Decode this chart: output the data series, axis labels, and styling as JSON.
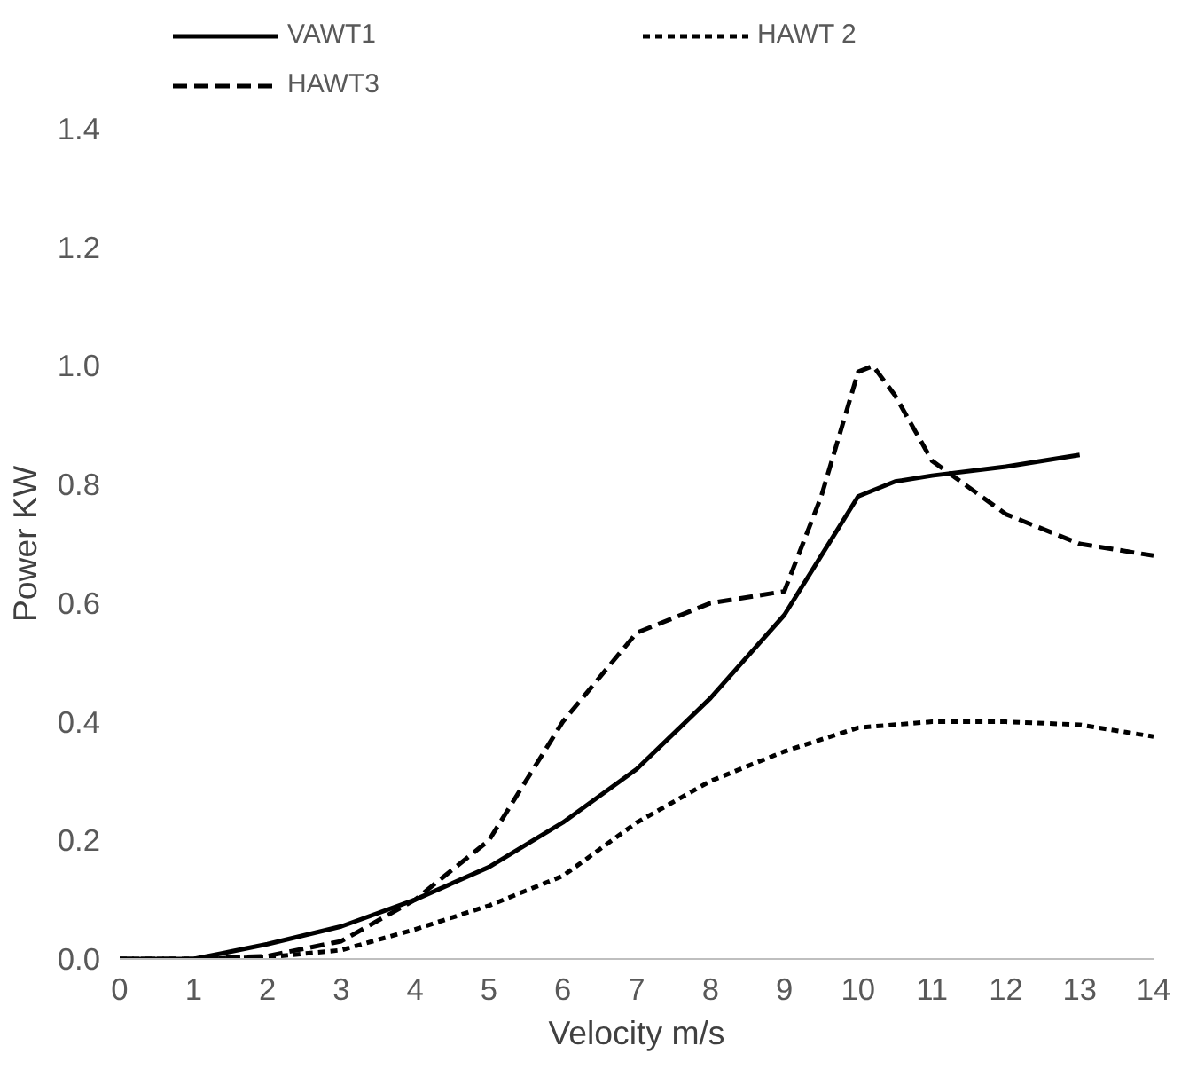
{
  "chart_data": {
    "type": "line",
    "xlabel": "Velocity m/s",
    "ylabel": "Power KW",
    "xlim": [
      0,
      14
    ],
    "ylim": [
      0,
      1.4
    ],
    "xticks": [
      0,
      1,
      2,
      3,
      4,
      5,
      6,
      7,
      8,
      9,
      10,
      11,
      12,
      13,
      14
    ],
    "yticks": [
      {
        "value": 0,
        "label": "0.0"
      },
      {
        "value": 0.2,
        "label": "0.2"
      },
      {
        "value": 0.4,
        "label": "0.4"
      },
      {
        "value": 0.6,
        "label": "0.6"
      },
      {
        "value": 0.8,
        "label": "0.8"
      },
      {
        "value": 1.0,
        "label": "1.0"
      },
      {
        "value": 1.2,
        "label": "1.2"
      },
      {
        "value": 1.4,
        "label": "1.4"
      }
    ],
    "grid": false,
    "legend": "top",
    "marker": "none",
    "series": [
      {
        "name": "VAWT1",
        "color": "#000000",
        "line_style": "solid",
        "x": [
          0,
          1,
          2,
          3,
          4,
          5,
          6,
          7,
          8,
          9,
          9.5,
          10,
          10.5,
          11,
          12,
          13
        ],
        "values": [
          0,
          0,
          0.025,
          0.055,
          0.1,
          0.155,
          0.23,
          0.32,
          0.44,
          0.58,
          0.68,
          0.78,
          0.805,
          0.815,
          0.83,
          0.85
        ]
      },
      {
        "name": "HAWT 2",
        "color": "#000000",
        "line_style": "dotted",
        "x": [
          0,
          1,
          2,
          3,
          4,
          5,
          6,
          7,
          8,
          9,
          10,
          11,
          12,
          13,
          14
        ],
        "values": [
          0,
          0,
          0.003,
          0.015,
          0.05,
          0.09,
          0.14,
          0.23,
          0.3,
          0.35,
          0.39,
          0.4,
          0.4,
          0.395,
          0.375
        ]
      },
      {
        "name": "HAWT3",
        "color": "#000000",
        "line_style": "dashed",
        "x": [
          0,
          1,
          2,
          3,
          4,
          5,
          5.5,
          6,
          7,
          8,
          9,
          9.5,
          10,
          10.2,
          10.5,
          11,
          12,
          13,
          14
        ],
        "values": [
          0,
          0,
          0.005,
          0.03,
          0.1,
          0.2,
          0.3,
          0.4,
          0.55,
          0.6,
          0.62,
          0.78,
          0.99,
          1.0,
          0.95,
          0.84,
          0.75,
          0.7,
          0.68
        ]
      }
    ]
  }
}
